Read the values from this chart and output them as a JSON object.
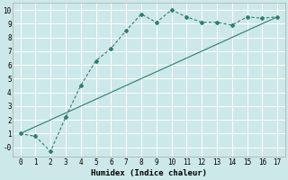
{
  "xlabel": "Humidex (Indice chaleur)",
  "ylabel": "",
  "background_color": "#cde8e8",
  "grid_color": "#ffffff",
  "line_color": "#2e7d6e",
  "xlim": [
    -0.5,
    17.5
  ],
  "ylim": [
    -0.7,
    10.5
  ],
  "xticks": [
    0,
    1,
    2,
    3,
    4,
    5,
    6,
    7,
    8,
    9,
    10,
    11,
    12,
    13,
    14,
    15,
    16,
    17
  ],
  "yticks": [
    0,
    1,
    2,
    3,
    4,
    5,
    6,
    7,
    8,
    9,
    10
  ],
  "ytick_labels": [
    "-0",
    "1",
    "2",
    "3",
    "4",
    "5",
    "6",
    "7",
    "8",
    "9",
    "10"
  ],
  "line1_x": [
    0,
    1,
    2,
    3,
    4,
    5,
    6,
    7,
    8,
    9,
    10,
    11,
    12,
    13,
    14,
    15,
    16,
    17
  ],
  "line1_y": [
    1.0,
    0.8,
    -0.3,
    2.2,
    4.5,
    6.3,
    7.2,
    8.5,
    9.7,
    9.1,
    10.0,
    9.5,
    9.1,
    9.1,
    8.9,
    9.5,
    9.4,
    9.5
  ],
  "line2_x": [
    0,
    17
  ],
  "line2_y": [
    1.0,
    9.5
  ],
  "font_size_label": 6.5,
  "font_size_tick": 5.5,
  "marker_size": 2.0,
  "linewidth": 0.8
}
